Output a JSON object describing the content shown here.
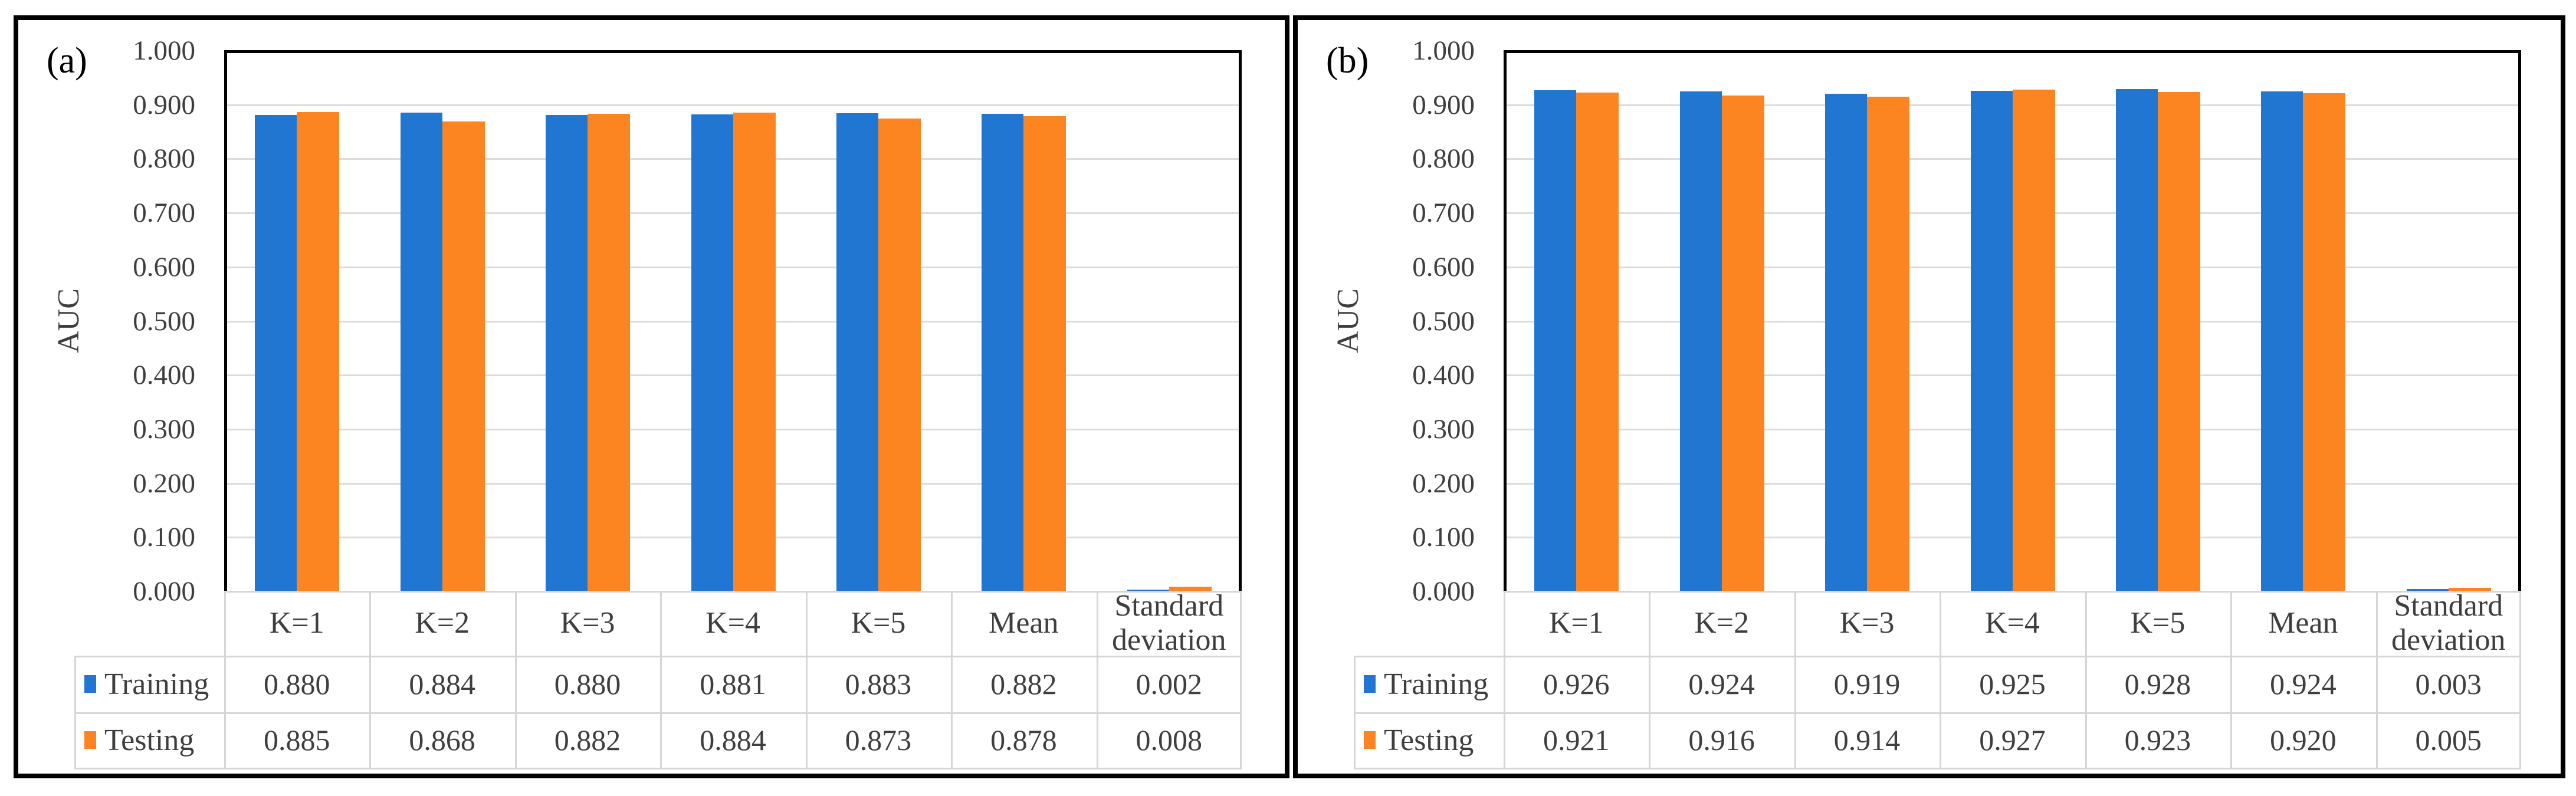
{
  "figure": {
    "description": "Two grouped bar charts comparing AUC of Training and Testing across cross-validation folds",
    "background": "#ffffff",
    "panel_border_color": "#000000"
  },
  "colors": {
    "training": "#2176d2",
    "testing": "#fc8522",
    "gridline": "#dcdcdc",
    "table_border": "#d6d6d6",
    "text": "#3e3e3e",
    "plot_border": "#000000"
  },
  "chart_data": [
    {
      "type": "bar",
      "panel_label": "(a)",
      "title": "",
      "xlabel": "",
      "ylabel": "AUC",
      "ylim": [
        0,
        1
      ],
      "grid": true,
      "legend_position": "table-rows-left",
      "yticks": [
        "1.000",
        "0.900",
        "0.800",
        "0.700",
        "0.600",
        "0.500",
        "0.400",
        "0.300",
        "0.200",
        "0.100",
        "0.000"
      ],
      "categories": [
        "K=1",
        "K=2",
        "K=3",
        "K=4",
        "K=5",
        "Mean",
        "Standard deviation"
      ],
      "series": [
        {
          "name": "Training",
          "color": "#2176d2",
          "values": [
            0.88,
            0.884,
            0.88,
            0.881,
            0.883,
            0.882,
            0.002
          ],
          "display": [
            "0.880",
            "0.884",
            "0.880",
            "0.881",
            "0.883",
            "0.882",
            "0.002"
          ]
        },
        {
          "name": "Testing",
          "color": "#fc8522",
          "values": [
            0.885,
            0.868,
            0.882,
            0.884,
            0.873,
            0.878,
            0.008
          ],
          "display": [
            "0.885",
            "0.868",
            "0.882",
            "0.884",
            "0.873",
            "0.878",
            "0.008"
          ]
        }
      ]
    },
    {
      "type": "bar",
      "panel_label": "(b)",
      "title": "",
      "xlabel": "",
      "ylabel": "AUC",
      "ylim": [
        0,
        1
      ],
      "grid": true,
      "legend_position": "table-rows-left",
      "yticks": [
        "1.000",
        "0.900",
        "0.800",
        "0.700",
        "0.600",
        "0.500",
        "0.400",
        "0.300",
        "0.200",
        "0.100",
        "0.000"
      ],
      "categories": [
        "K=1",
        "K=2",
        "K=3",
        "K=4",
        "K=5",
        "Mean",
        "Standard deviation"
      ],
      "series": [
        {
          "name": "Training",
          "color": "#2176d2",
          "values": [
            0.926,
            0.924,
            0.919,
            0.925,
            0.928,
            0.924,
            0.003
          ],
          "display": [
            "0.926",
            "0.924",
            "0.919",
            "0.925",
            "0.928",
            "0.924",
            "0.003"
          ]
        },
        {
          "name": "Testing",
          "color": "#fc8522",
          "values": [
            0.921,
            0.916,
            0.914,
            0.927,
            0.923,
            0.92,
            0.005
          ],
          "display": [
            "0.921",
            "0.916",
            "0.914",
            "0.927",
            "0.923",
            "0.920",
            "0.005"
          ]
        }
      ]
    }
  ]
}
